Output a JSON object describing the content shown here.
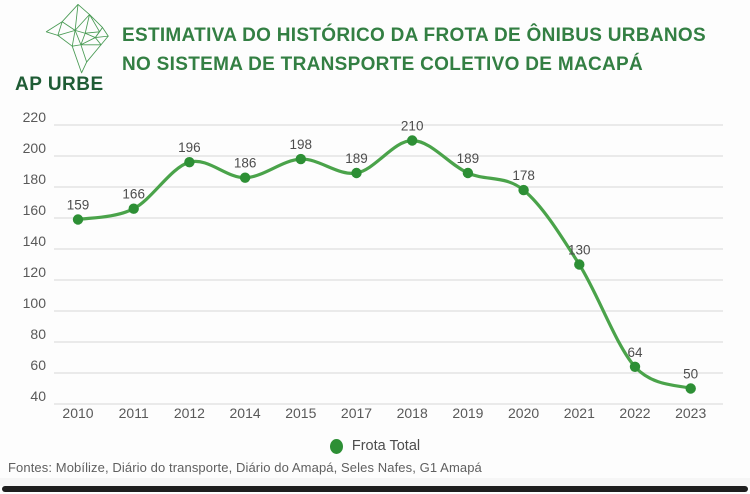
{
  "brand": {
    "name": "AP URBE",
    "logo_icon": "amapa-wireframe-map-logo"
  },
  "header": {
    "title_line1": "ESTIMATIVA DO HISTÓRICO DA FROTA DE ÔNIBUS URBANOS",
    "title_line2": "NO SISTEMA DE TRANSPORTE COLETIVO DE MACAPÁ",
    "title_color": "#337f43",
    "brand_color": "#1f5c35"
  },
  "chart_data": {
    "type": "line",
    "title": "Estimativa do histórico da frota de ônibus urbanos no sistema de transporte coletivo de Macapá",
    "categories": [
      "2010",
      "2011",
      "2012",
      "2014",
      "2015",
      "2017",
      "2018",
      "2019",
      "2020",
      "2021",
      "2022",
      "2023"
    ],
    "series": [
      {
        "name": "Frota Total",
        "values": [
          159,
          166,
          196,
          186,
          198,
          189,
          210,
          189,
          178,
          130,
          64,
          50
        ]
      }
    ],
    "ylim": [
      40,
      220
    ],
    "ytick_step": 20,
    "grid": true,
    "point_labels": true,
    "legend_position": "bottom",
    "colors": {
      "line": "#4aa34a",
      "point": "#2d8f35",
      "data_label": "#4d4d4d",
      "tick_label": "#595959",
      "grid_line": "#e4e4e4"
    }
  },
  "legend": {
    "label": "Frota Total"
  },
  "footer": {
    "sources_text": "Fontes: Mobílize, Diário do transporte, Diário do Amapá, Seles Nafes, G1 Amapá"
  }
}
